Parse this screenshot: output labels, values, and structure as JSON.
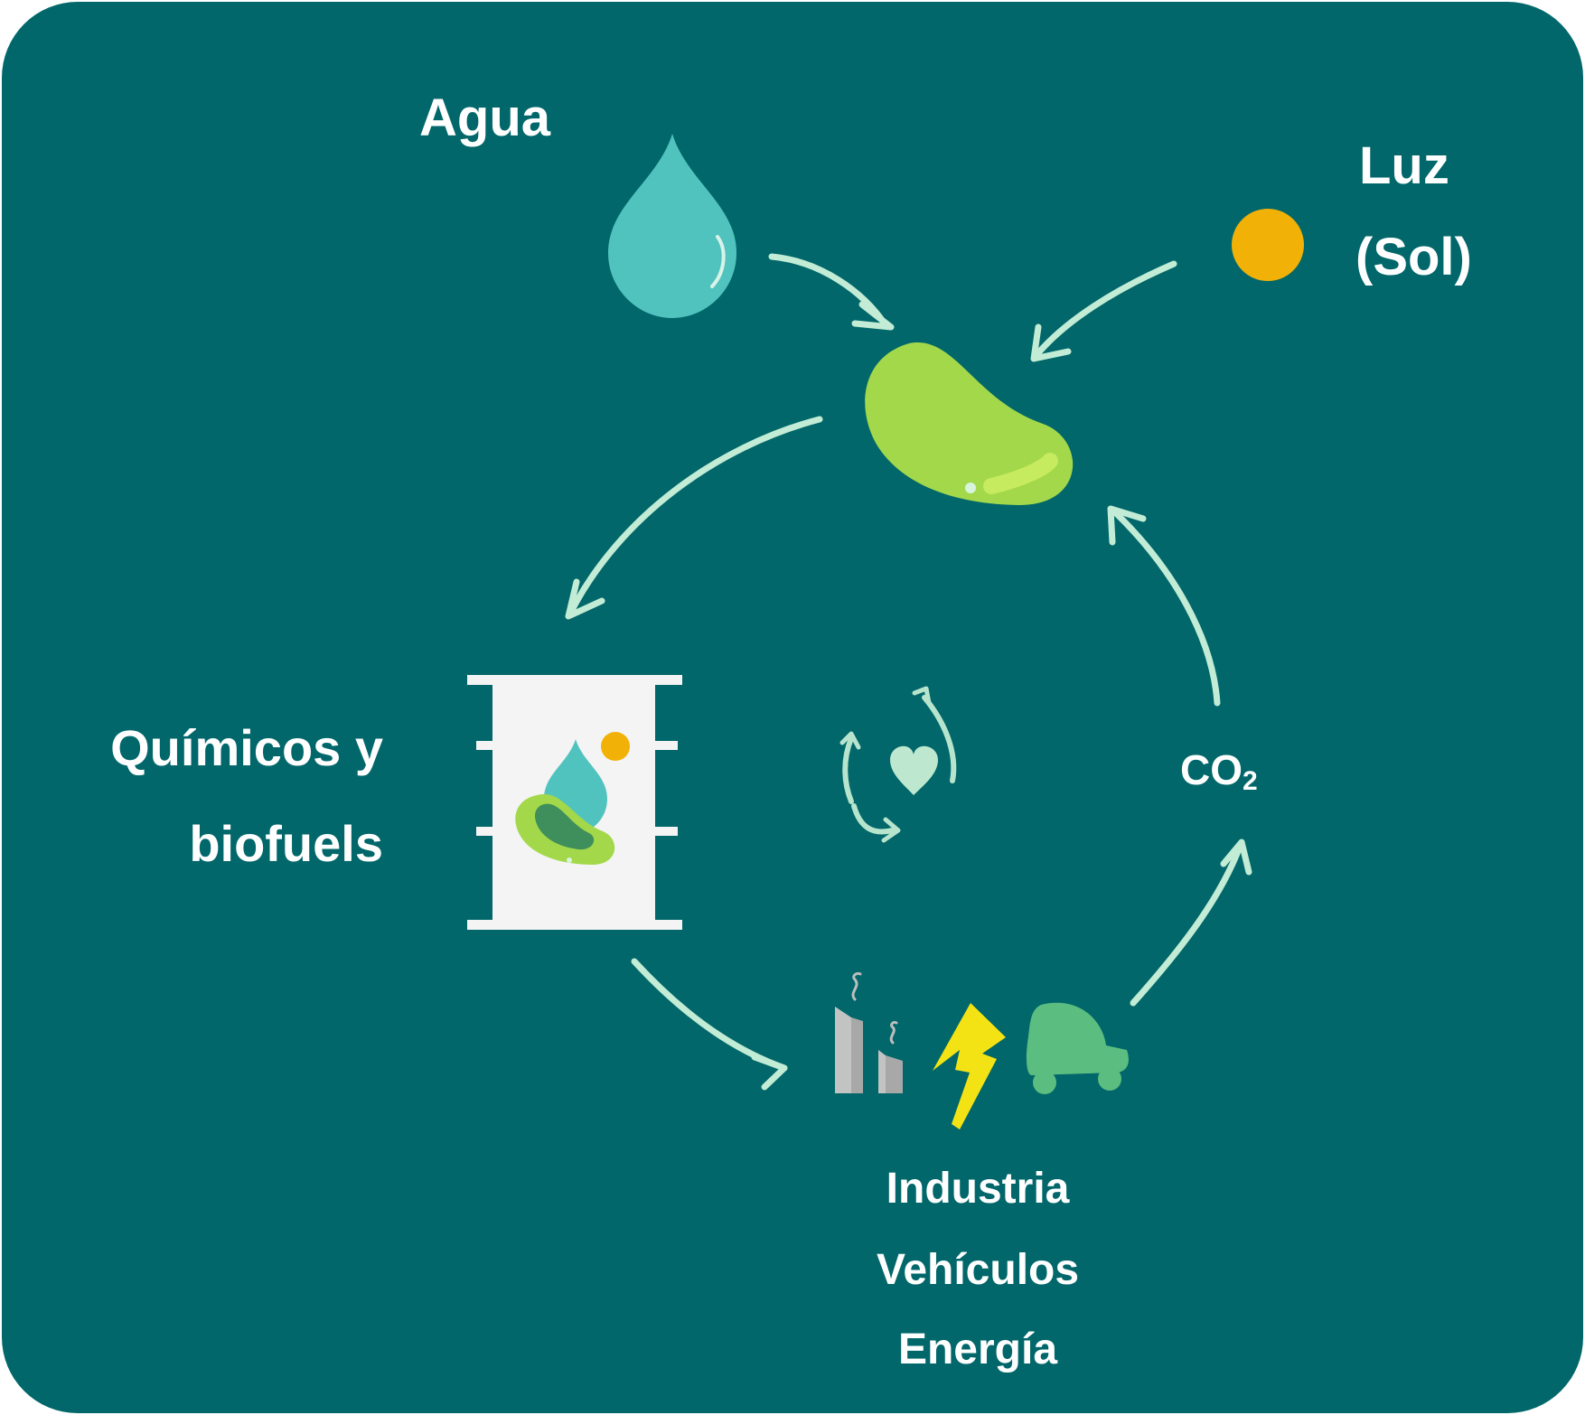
{
  "labels": {
    "water": "Agua",
    "light_line1": "Luz",
    "light_line2": "(Sol)",
    "chemicals_line1": "Químicos y",
    "chemicals_line2": "biofuels",
    "co2_main": "CO",
    "co2_sub": "2",
    "uses": [
      "Industria",
      "Vehículos",
      "Energía"
    ]
  },
  "icons": {
    "water": "water-drop-icon",
    "sun": "sun-icon",
    "microalgae": "microalgae-cell-icon",
    "barrel": "barrel-icon",
    "factory": "factory-icon",
    "energy": "lightning-bolt-icon",
    "vehicle": "car-icon",
    "cycle": "recycle-heart-icon"
  },
  "colors": {
    "background": "#01676a",
    "arrows": "#c2ecd5",
    "water_drop": "#51c3be",
    "sun": "#f2b107",
    "algae": "#a3d84a",
    "barrel": "#f4f4f4",
    "factory": "#c3c3c3",
    "lightning": "#f4e314",
    "car": "#5bbd80",
    "text": "#ffffff"
  }
}
